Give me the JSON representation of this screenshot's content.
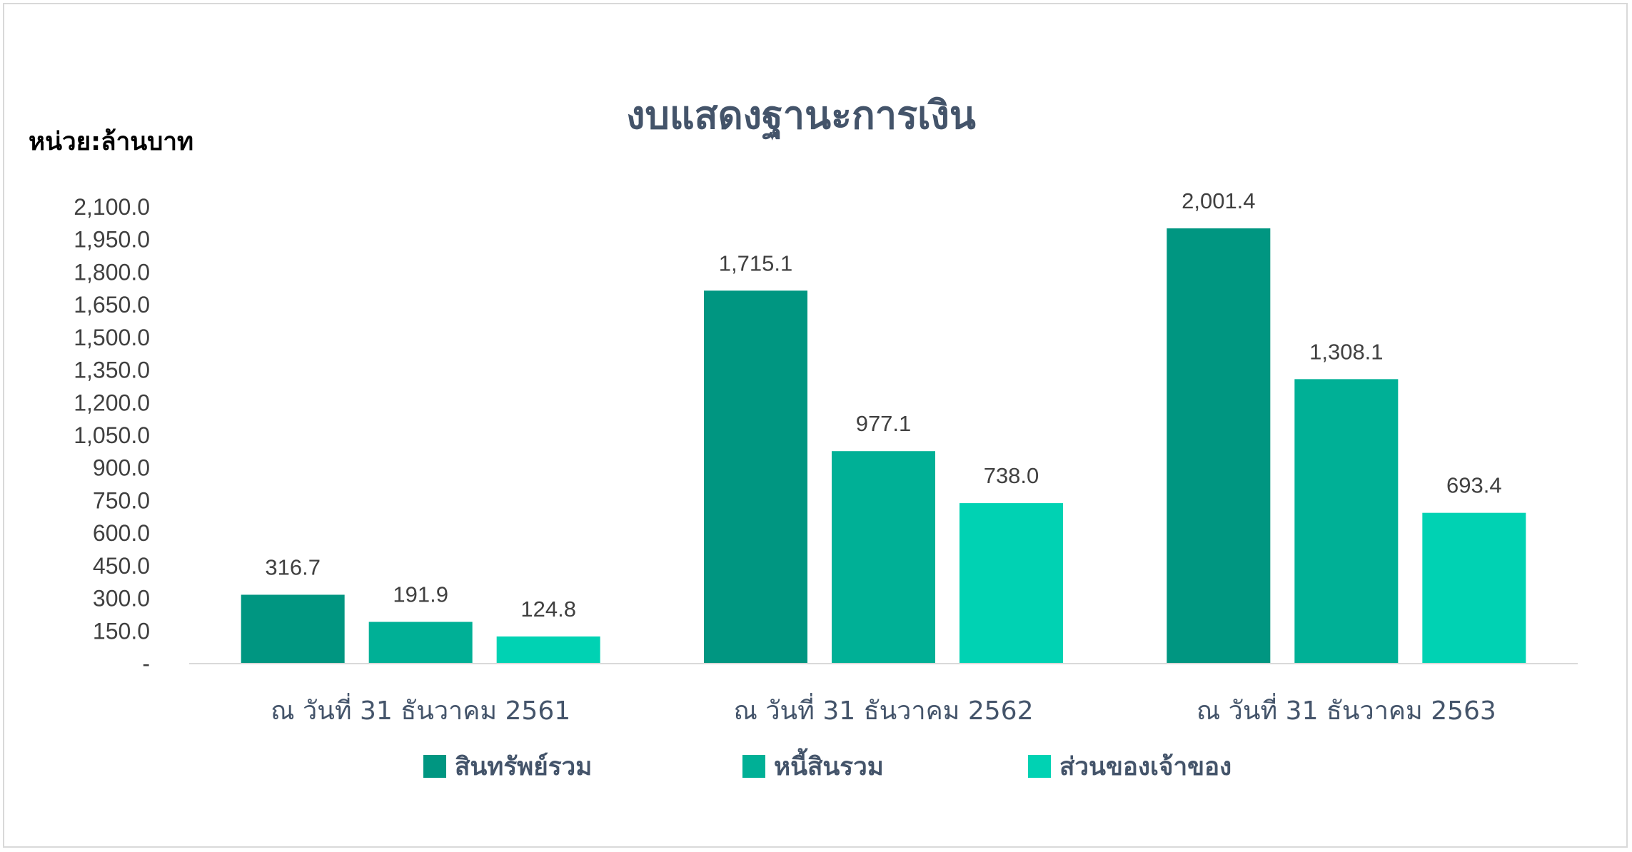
{
  "chart_data": {
    "type": "bar",
    "title": "งบแสดงฐานะการเงิน",
    "unit_label": "หน่วย:ล้านบาท",
    "categories": [
      "ณ วันที่ 31 ธันวาคม 2561",
      "ณ วันที่ 31 ธันวาคม 2562",
      "ณ วันที่ 31 ธันวาคม 2563"
    ],
    "series": [
      {
        "name": "สินทรัพย์รวม",
        "color": "#009681",
        "values": [
          316.7,
          1715.1,
          2001.4
        ],
        "labels": [
          "316.7",
          "1,715.1",
          "2,001.4"
        ]
      },
      {
        "name": "หนี้สินรวม",
        "color": "#00b096",
        "values": [
          191.9,
          977.1,
          1308.1
        ],
        "labels": [
          "191.9",
          "977.1",
          "1,308.1"
        ]
      },
      {
        "name": "ส่วนของเจ้าของ",
        "color": "#00d2b3",
        "values": [
          124.8,
          738.0,
          693.4
        ],
        "labels": [
          "124.8",
          "738.0",
          "693.4"
        ]
      }
    ],
    "yticks": [
      "-",
      "150.0",
      "300.0",
      "450.0",
      "600.0",
      "750.0",
      "900.0",
      "1,050.0",
      "1,200.0",
      "1,350.0",
      "1,500.0",
      "1,650.0",
      "1,800.0",
      "1,950.0",
      "2,100.0"
    ],
    "ylim": [
      0,
      2100
    ],
    "grid": false,
    "legend": "bottom"
  }
}
